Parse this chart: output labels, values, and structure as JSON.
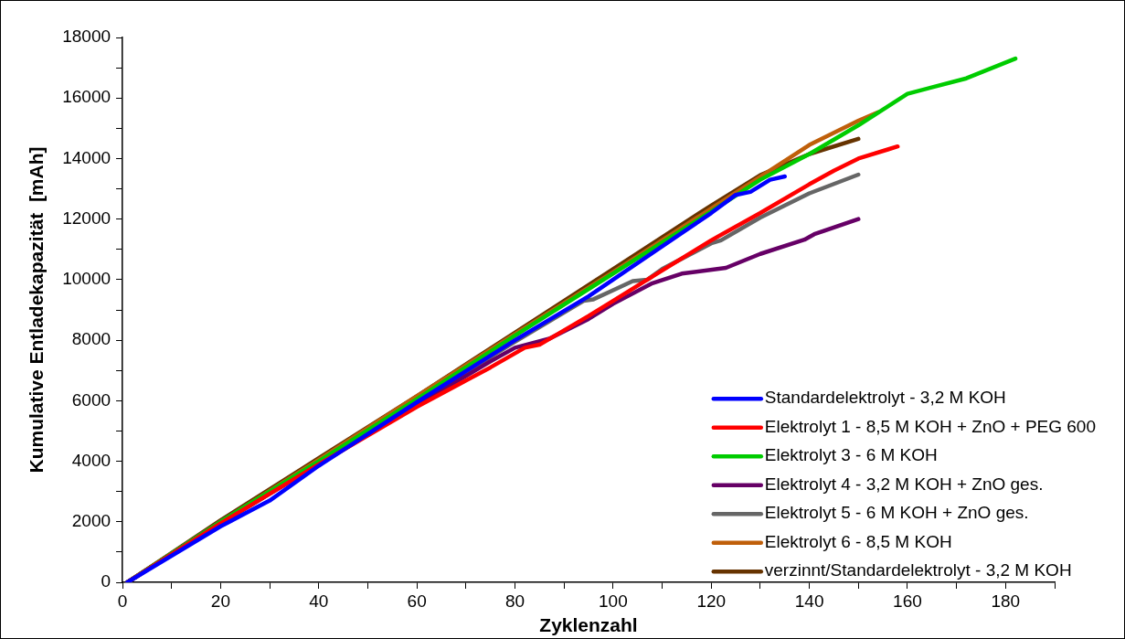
{
  "chart_data": {
    "type": "line",
    "xlabel": "Zyklenzahl",
    "ylabel": "Kumulative Entladekapazität  [mAh]",
    "xlim": [
      0,
      190
    ],
    "ylim": [
      0,
      18000
    ],
    "xticks": [
      0,
      {
        "value": 10,
        "label": null
      },
      20,
      {
        "value": 30,
        "label": null
      },
      40,
      {
        "value": 50,
        "label": null
      },
      60,
      {
        "value": 70,
        "label": null
      },
      80,
      {
        "value": 90,
        "label": null
      },
      100,
      {
        "value": 110,
        "label": null
      },
      120,
      {
        "value": 130,
        "label": null
      },
      140,
      {
        "value": 150,
        "label": null
      },
      160,
      {
        "value": 170,
        "label": null
      },
      180,
      {
        "value": 190,
        "label": null
      }
    ],
    "yticks": [
      0,
      {
        "value": 1000,
        "label": null
      },
      2000,
      {
        "value": 3000,
        "label": null
      },
      4000,
      {
        "value": 5000,
        "label": null
      },
      6000,
      {
        "value": 7000,
        "label": null
      },
      8000,
      {
        "value": 9000,
        "label": null
      },
      10000,
      {
        "value": 11000,
        "label": null
      },
      12000,
      {
        "value": 13000,
        "label": null
      },
      14000,
      {
        "value": 15000,
        "label": null
      },
      16000,
      {
        "value": 17000,
        "label": null
      },
      18000
    ],
    "grid": false,
    "legend": "bottom right",
    "marker": "none",
    "line_style": "solid",
    "series": [
      {
        "name": "Standardelektrolyt - 3,2 M KOH",
        "color": "#0000ff",
        "x": [
          1,
          20,
          30,
          40,
          60,
          80,
          95,
          100,
          120,
          125,
          128,
          132,
          135
        ],
        "values": [
          0,
          1850,
          2700,
          3850,
          5950,
          8000,
          9450,
          10000,
          12200,
          12800,
          12900,
          13300,
          13410
        ]
      },
      {
        "name": "Elektrolyt 1 - 8,5 M KOH + ZnO + PEG 600",
        "color": "#ff0000",
        "x": [
          1,
          20,
          40,
          60,
          75,
          82,
          85,
          95,
          100,
          110,
          120,
          130,
          140,
          145,
          150,
          156,
          158
        ],
        "values": [
          0,
          1950,
          3900,
          5800,
          7100,
          7750,
          7850,
          8800,
          9300,
          10300,
          11300,
          12200,
          13150,
          13600,
          14000,
          14300,
          14400
        ]
      },
      {
        "name": "Elektrolyt 3 - 6 M KOH",
        "color": "#00cc00",
        "x": [
          1,
          20,
          40,
          60,
          80,
          100,
          120,
          130,
          140,
          150,
          160,
          172,
          182
        ],
        "values": [
          0,
          2000,
          4000,
          6050,
          8150,
          10200,
          12250,
          13300,
          14150,
          15100,
          16140,
          16650,
          17300
        ]
      },
      {
        "name": "Elektrolyt 4 - 3,2 M KOH + ZnO ges.",
        "color": "#660066",
        "x": [
          1,
          20,
          40,
          60,
          75,
          80,
          87,
          95,
          100,
          108,
          114,
          123,
          130,
          139,
          141,
          150
        ],
        "values": [
          0,
          1950,
          3900,
          5850,
          7300,
          7750,
          8050,
          8700,
          9200,
          9880,
          10200,
          10390,
          10850,
          11320,
          11500,
          12000
        ]
      },
      {
        "name": "Elektrolyt 5 - 6 M KOH + ZnO ges.",
        "color": "#666666",
        "x": [
          1,
          20,
          40,
          60,
          80,
          94,
          96,
          100,
          104,
          107,
          110,
          120,
          122,
          130,
          140,
          150
        ],
        "values": [
          0,
          2000,
          3950,
          5950,
          7950,
          9300,
          9350,
          9650,
          9950,
          10000,
          10350,
          11200,
          11300,
          12050,
          12850,
          13470
        ]
      },
      {
        "name": "Elektrolyt 6 - 8,5 M KOH",
        "color": "#bf5f0a",
        "x": [
          1,
          20,
          40,
          60,
          80,
          100,
          120,
          130,
          140,
          150,
          154
        ],
        "values": [
          0,
          2000,
          4050,
          6150,
          8200,
          10250,
          12350,
          13400,
          14450,
          15250,
          15530
        ]
      },
      {
        "name": "verzinnt/Standardelektrolyt - 3,2 M KOH",
        "color": "#663300",
        "x": [
          1,
          20,
          40,
          60,
          80,
          100,
          120,
          130,
          140,
          150
        ],
        "values": [
          0,
          2050,
          4100,
          6150,
          8250,
          10350,
          12450,
          13450,
          14150,
          14650
        ]
      }
    ]
  }
}
